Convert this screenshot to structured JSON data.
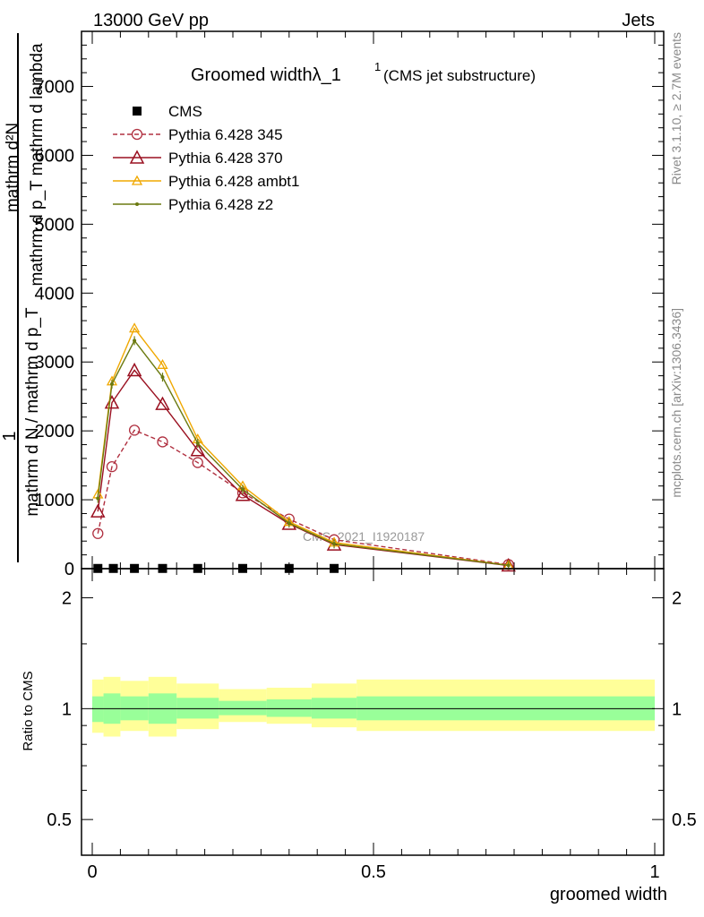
{
  "header": {
    "left": "13000 GeV pp",
    "right": "Jets"
  },
  "side_labels": {
    "rivet": "Rivet 3.1.10, ≥ 2.7M events",
    "mcplots": "mcplots.cern.ch [arXiv:1306.3436]"
  },
  "chart_data": [
    {
      "type": "line",
      "title": "Groomed widthλ_1",
      "title_sup": "1",
      "title_note": "(CMS jet substructure)",
      "watermark": "CMS_2021_I1920187",
      "ylabel_top": "1",
      "ylabel_num": "mathrm d²N",
      "ylabel_mid": "mathrm d p_T mathrm d lambda",
      "ylabel_den": "mathrm d N / mathrm d p_T",
      "xlim": [
        0,
        1
      ],
      "ylim": [
        0,
        7800
      ],
      "yticks": [
        0,
        1000,
        2000,
        3000,
        4000,
        5000,
        6000,
        7000
      ],
      "ytick_labels": [
        "0",
        "1000",
        "2000",
        "3000",
        "4000",
        "5000",
        "6000",
        "7000"
      ],
      "series": [
        {
          "name": "CMS",
          "color": "#000000",
          "marker": "square",
          "style": "none",
          "x": [
            0.01,
            0.0375,
            0.075,
            0.125,
            0.1875,
            0.2675,
            0.35,
            0.43
          ],
          "y": [
            3,
            3,
            3,
            3,
            3,
            3,
            3,
            3
          ]
        },
        {
          "name": "Pythia 6.428 345",
          "color": "#b03040",
          "marker": "circle",
          "style": "dashed",
          "x": [
            0.01,
            0.035,
            0.075,
            0.125,
            0.1875,
            0.2675,
            0.35,
            0.43,
            0.74
          ],
          "y": [
            510,
            1480,
            2010,
            1840,
            1540,
            1100,
            720,
            420,
            60
          ]
        },
        {
          "name": "Pythia 6.428 370",
          "color": "#9a1020",
          "marker": "triangle",
          "style": "solid",
          "x": [
            0.01,
            0.035,
            0.075,
            0.125,
            0.1875,
            0.2675,
            0.35,
            0.43,
            0.74
          ],
          "y": [
            830,
            2410,
            2880,
            2390,
            1720,
            1070,
            650,
            350,
            45
          ]
        },
        {
          "name": "Pythia 6.428 ambt1",
          "color": "#f0a800",
          "marker": "triangle-small",
          "style": "solid",
          "x": [
            0.01,
            0.035,
            0.075,
            0.125,
            0.1875,
            0.2675,
            0.35,
            0.43,
            0.74
          ],
          "y": [
            1080,
            2720,
            3490,
            2960,
            1880,
            1200,
            680,
            380,
            50
          ]
        },
        {
          "name": "Pythia 6.428 z2",
          "color": "#6b7a10",
          "marker": "dot",
          "style": "solid",
          "x": [
            0.01,
            0.035,
            0.075,
            0.125,
            0.1875,
            0.2675,
            0.35,
            0.43,
            0.74
          ],
          "y": [
            1020,
            2680,
            3310,
            2780,
            1820,
            1150,
            660,
            360,
            48
          ]
        }
      ]
    },
    {
      "type": "area",
      "ylabel": "Ratio to CMS",
      "xlabel": "groomed width",
      "xlim": [
        0,
        1
      ],
      "ylim": [
        0.4,
        2.4
      ],
      "scale": "log",
      "xticks": [
        0,
        0.5,
        1
      ],
      "xtick_labels": [
        "0",
        "0.5",
        "1"
      ],
      "yticks": [
        0.5,
        1,
        2
      ],
      "ytick_labels": [
        "0.5",
        "1",
        "2"
      ],
      "bins": [
        {
          "x0": 0.0,
          "x1": 0.02,
          "inner": [
            0.92,
            1.08
          ],
          "outer": [
            0.86,
            1.2
          ]
        },
        {
          "x0": 0.02,
          "x1": 0.05,
          "inner": [
            0.91,
            1.1
          ],
          "outer": [
            0.84,
            1.22
          ]
        },
        {
          "x0": 0.05,
          "x1": 0.1,
          "inner": [
            0.93,
            1.08
          ],
          "outer": [
            0.87,
            1.19
          ]
        },
        {
          "x0": 0.1,
          "x1": 0.15,
          "inner": [
            0.91,
            1.1
          ],
          "outer": [
            0.84,
            1.22
          ]
        },
        {
          "x0": 0.15,
          "x1": 0.225,
          "inner": [
            0.94,
            1.07
          ],
          "outer": [
            0.88,
            1.17
          ]
        },
        {
          "x0": 0.225,
          "x1": 0.31,
          "inner": [
            0.96,
            1.05
          ],
          "outer": [
            0.92,
            1.13
          ]
        },
        {
          "x0": 0.31,
          "x1": 0.39,
          "inner": [
            0.95,
            1.06
          ],
          "outer": [
            0.91,
            1.14
          ]
        },
        {
          "x0": 0.39,
          "x1": 0.47,
          "inner": [
            0.94,
            1.07
          ],
          "outer": [
            0.89,
            1.17
          ]
        },
        {
          "x0": 0.47,
          "x1": 1.0,
          "inner": [
            0.93,
            1.08
          ],
          "outer": [
            0.87,
            1.2
          ]
        }
      ]
    }
  ]
}
